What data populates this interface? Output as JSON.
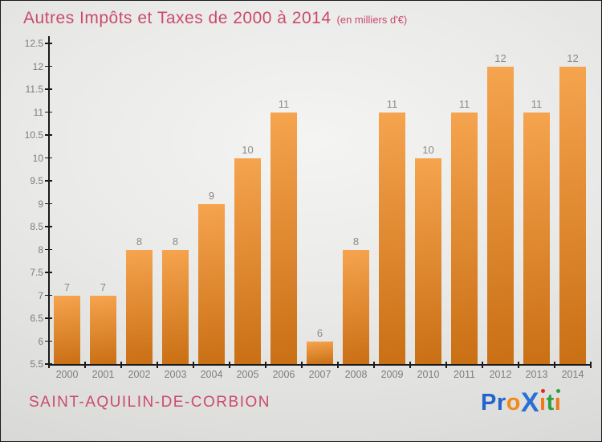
{
  "header": {
    "title": "Autres Impôts et Taxes de 2000 à 2014",
    "subtitle": "(en milliers d'€)"
  },
  "footer": {
    "city": "SAINT-AQUILIN-DE-CORBION",
    "logo_text": "Proxiti",
    "logo_letters": [
      {
        "ch": "P",
        "color": "#2465cc"
      },
      {
        "ch": "r",
        "color": "#2465cc"
      },
      {
        "ch": "o",
        "color": "#f28a18"
      },
      {
        "ch": "X",
        "color": "#2b6fd4",
        "big": true
      },
      {
        "ch": "ı",
        "color": "#f07818",
        "dot": "#e02a1a"
      },
      {
        "ch": "t",
        "color": "#2e9e3e"
      },
      {
        "ch": "ı",
        "color": "#f07818",
        "dot": "#2e9e3e"
      }
    ]
  },
  "colors": {
    "accent_pink": "#cb4a6d",
    "bar_gradient_top": "#f6a44f",
    "bar_gradient_bottom": "#c96f14",
    "axis": "#1a1a1a",
    "value_label_gray": "#8a8a8a",
    "tick_label_gray": "#7d7d7d"
  },
  "chart_data": {
    "type": "bar",
    "title": "Autres Impôts et Taxes de 2000 à 2014",
    "subtitle": "(en milliers d'€)",
    "categories": [
      "2000",
      "2001",
      "2002",
      "2003",
      "2004",
      "2005",
      "2006",
      "2007",
      "2008",
      "2009",
      "2010",
      "2011",
      "2012",
      "2013",
      "2014"
    ],
    "values": [
      7,
      7,
      8,
      8,
      9,
      10,
      11,
      6,
      8,
      11,
      10,
      11,
      12,
      11,
      12
    ],
    "xlabel": "",
    "ylabel": "",
    "ylim": [
      5.5,
      12.5
    ],
    "ytick_step": 0.5,
    "grid": false,
    "legend": false,
    "bar_value_labels": true
  }
}
